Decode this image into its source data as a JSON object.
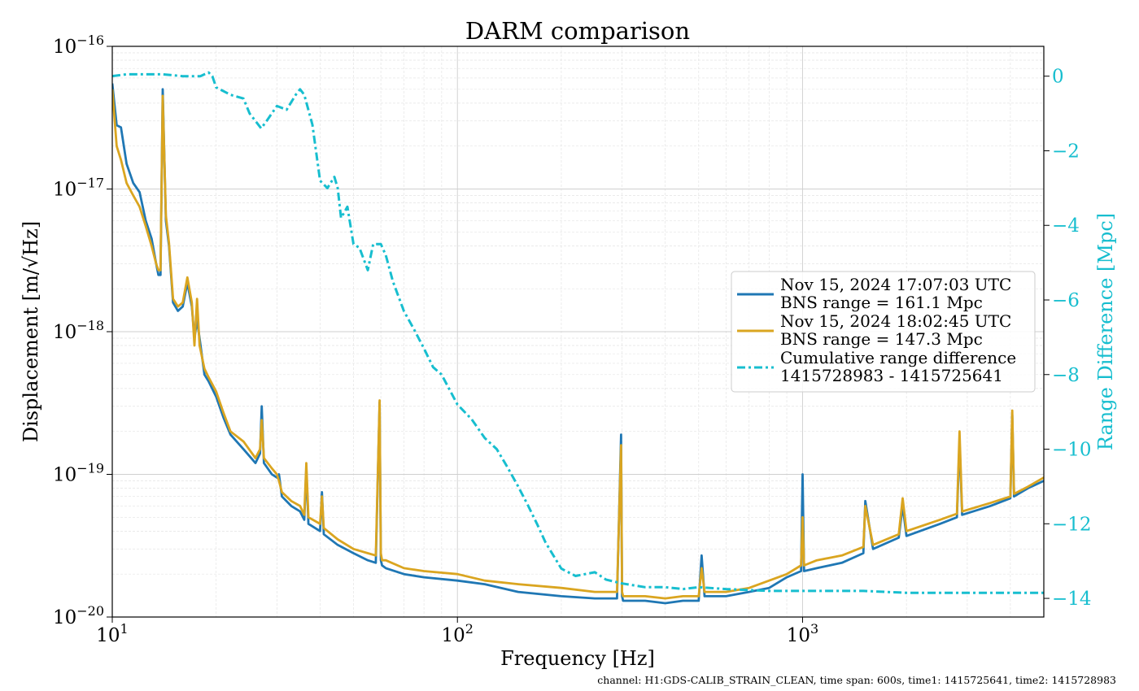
{
  "chart_data": {
    "type": "line",
    "title": "DARM comparison",
    "xlabel": "Frequency [Hz]",
    "ylabel": "Displacement [m/√Hz]",
    "y2label": "Range Difference [Mpc]",
    "xscale": "log",
    "yscale": "log",
    "xlim": [
      10,
      5000
    ],
    "ylim": [
      1e-20,
      1e-16
    ],
    "y2lim": [
      -14.5,
      0.8
    ],
    "grid": true,
    "legend_position": "center-right",
    "x_ticks": [
      {
        "value": 10,
        "base": "10",
        "exp": "1"
      },
      {
        "value": 100,
        "base": "10",
        "exp": "2"
      },
      {
        "value": 1000,
        "base": "10",
        "exp": "3"
      }
    ],
    "y_ticks": [
      {
        "value": 1e-16,
        "base": "10",
        "exp": "−16"
      },
      {
        "value": 1e-17,
        "base": "10",
        "exp": "−17"
      },
      {
        "value": 1e-18,
        "base": "10",
        "exp": "−18"
      },
      {
        "value": 1e-19,
        "base": "10",
        "exp": "−19"
      },
      {
        "value": 1e-20,
        "base": "10",
        "exp": "−20"
      }
    ],
    "y2_ticks": [
      {
        "value": 0,
        "label": "0"
      },
      {
        "value": -2,
        "label": "−2"
      },
      {
        "value": -4,
        "label": "−4"
      },
      {
        "value": -6,
        "label": "−6"
      },
      {
        "value": -8,
        "label": "−8"
      },
      {
        "value": -10,
        "label": "−10"
      },
      {
        "value": -12,
        "label": "−12"
      },
      {
        "value": -14,
        "label": "−14"
      }
    ],
    "series": [
      {
        "name": "Nov 15, 2024 17:07:03 UTC\nBNS range = 161.1 Mpc",
        "legend_lines": [
          "Nov 15, 2024 17:07:03 UTC",
          "BNS range = 161.1 Mpc"
        ],
        "axis": "left",
        "color": "#1f77b4",
        "style": "solid",
        "x": [
          10,
          10.3,
          10.6,
          11,
          11.5,
          12,
          12.5,
          13,
          13.4,
          13.6,
          13.8,
          14,
          14.3,
          14.6,
          15,
          15.5,
          16,
          16.5,
          17,
          17.3,
          17.6,
          17.9,
          18.5,
          19,
          20,
          21,
          22,
          24,
          26,
          26.8,
          27.1,
          27.5,
          29,
          30,
          30.4,
          31,
          33,
          35,
          36,
          36.5,
          37,
          40,
          40.5,
          41,
          45,
          50,
          55,
          58,
          59.5,
          60,
          60.5,
          62,
          70,
          80,
          100,
          120,
          150,
          200,
          250,
          290,
          298,
          300,
          302,
          310,
          350,
          400,
          450,
          500,
          510,
          520,
          600,
          700,
          800,
          900,
          990,
          1000,
          1010,
          1100,
          1300,
          1500,
          1520,
          1600,
          1900,
          1950,
          2000,
          2500,
          2800,
          2850,
          2900,
          3500,
          4000,
          4050,
          4100,
          4500,
          5000
        ],
        "y": [
          5.5e-17,
          2.8e-17,
          2.7e-17,
          1.5e-17,
          1.1e-17,
          9.5e-18,
          6e-18,
          4.5e-18,
          3e-18,
          2.5e-18,
          2.5e-18,
          5e-17,
          6e-18,
          4e-18,
          1.6e-18,
          1.4e-18,
          1.5e-18,
          2.2e-18,
          1.5e-18,
          9e-19,
          1.2e-18,
          9e-19,
          5e-19,
          4.5e-19,
          3.5e-19,
          2.5e-19,
          1.9e-19,
          1.5e-19,
          1.2e-19,
          1.4e-19,
          3e-19,
          1.2e-19,
          1e-19,
          9.5e-20,
          1e-19,
          7e-20,
          6e-20,
          5.5e-20,
          4.8e-20,
          1.1e-19,
          4.5e-20,
          4e-20,
          7.5e-20,
          3.8e-20,
          3.2e-20,
          2.8e-20,
          2.5e-20,
          2.4e-20,
          3.2e-19,
          2.5e-20,
          2.3e-20,
          2.2e-20,
          2e-20,
          1.9e-20,
          1.8e-20,
          1.7e-20,
          1.5e-20,
          1.4e-20,
          1.35e-20,
          1.35e-20,
          1.9e-19,
          1.4e-20,
          1.3e-20,
          1.3e-20,
          1.3e-20,
          1.25e-20,
          1.3e-20,
          1.3e-20,
          2.7e-20,
          1.4e-20,
          1.4e-20,
          1.5e-20,
          1.6e-20,
          1.9e-20,
          2.1e-20,
          1e-19,
          2.1e-20,
          2.2e-20,
          2.4e-20,
          2.8e-20,
          6.5e-20,
          3e-20,
          3.6e-20,
          6e-20,
          3.7e-20,
          4.5e-20,
          5e-20,
          1.7e-19,
          5.2e-20,
          6e-20,
          6.8e-20,
          2.6e-19,
          7e-20,
          8e-20,
          9e-20
        ]
      },
      {
        "name": "Nov 15, 2024 18:02:45 UTC\nBNS range = 147.3 Mpc",
        "legend_lines": [
          "Nov 15, 2024 18:02:45 UTC",
          "BNS range = 147.3 Mpc"
        ],
        "axis": "left",
        "color": "#daa520",
        "style": "solid",
        "x": [
          10,
          10.3,
          10.6,
          11,
          11.5,
          12,
          12.5,
          13,
          13.4,
          13.6,
          13.8,
          14,
          14.3,
          14.6,
          15,
          15.5,
          16,
          16.5,
          17,
          17.3,
          17.6,
          17.9,
          18.5,
          19,
          20,
          21,
          22,
          24,
          26,
          26.8,
          27.1,
          27.5,
          29,
          30,
          30.4,
          31,
          33,
          35,
          36,
          36.5,
          37,
          40,
          40.5,
          41,
          45,
          50,
          55,
          58,
          59.5,
          60,
          60.5,
          62,
          70,
          80,
          100,
          120,
          150,
          200,
          250,
          290,
          298,
          300,
          302,
          310,
          350,
          400,
          450,
          500,
          510,
          520,
          600,
          700,
          800,
          900,
          990,
          1000,
          1010,
          1100,
          1300,
          1500,
          1520,
          1600,
          1900,
          1950,
          2000,
          2500,
          2800,
          2850,
          2900,
          3500,
          4000,
          4050,
          4100,
          4500,
          5000
        ],
        "y": [
          5e-17,
          2e-17,
          1.6e-17,
          1.1e-17,
          9e-18,
          7.5e-18,
          5.5e-18,
          4e-18,
          3e-18,
          2.7e-18,
          2.7e-18,
          4.5e-17,
          6.5e-18,
          4.2e-18,
          1.7e-18,
          1.5e-18,
          1.6e-18,
          2.4e-18,
          1.6e-18,
          8e-19,
          1.7e-18,
          8e-19,
          5.5e-19,
          4.8e-19,
          3.8e-19,
          2.7e-19,
          2e-19,
          1.7e-19,
          1.3e-19,
          1.5e-19,
          2.4e-19,
          1.3e-19,
          1.1e-19,
          1e-19,
          9e-20,
          7.5e-20,
          6.5e-20,
          6e-20,
          5.2e-20,
          1.2e-19,
          5e-20,
          4.5e-20,
          7e-20,
          4.2e-20,
          3.5e-20,
          3e-20,
          2.8e-20,
          2.7e-20,
          3.3e-19,
          2.8e-20,
          2.5e-20,
          2.5e-20,
          2.2e-20,
          2.1e-20,
          2e-20,
          1.8e-20,
          1.7e-20,
          1.6e-20,
          1.5e-20,
          1.5e-20,
          1.6e-19,
          1.5e-20,
          1.4e-20,
          1.4e-20,
          1.4e-20,
          1.35e-20,
          1.4e-20,
          1.4e-20,
          2.2e-20,
          1.5e-20,
          1.5e-20,
          1.6e-20,
          1.8e-20,
          2e-20,
          2.3e-20,
          5e-20,
          2.3e-20,
          2.5e-20,
          2.7e-20,
          3.1e-20,
          6e-20,
          3.2e-20,
          3.8e-20,
          6.8e-20,
          4e-20,
          4.8e-20,
          5.3e-20,
          2e-19,
          5.5e-20,
          6.3e-20,
          7e-20,
          2.8e-19,
          7.3e-20,
          8.2e-20,
          9.5e-20
        ]
      },
      {
        "name": "Cumulative range difference\n1415728983 - 1415725641",
        "legend_lines": [
          "Cumulative range difference",
          "1415728983 - 1415725641"
        ],
        "axis": "right",
        "color": "#17becf",
        "style": "dashdot",
        "x": [
          10,
          11,
          12,
          14,
          16,
          18,
          19,
          19.5,
          20,
          22,
          24,
          25,
          26,
          27,
          28,
          30,
          32,
          34,
          35,
          36,
          38,
          40,
          42,
          44,
          45,
          46,
          48,
          50,
          52,
          55,
          57,
          60,
          62,
          65,
          70,
          75,
          80,
          85,
          90,
          100,
          110,
          120,
          130,
          140,
          150,
          160,
          170,
          180,
          200,
          220,
          250,
          270,
          300,
          350,
          400,
          450,
          500,
          600,
          800,
          1000,
          1500,
          2000,
          3000,
          5000
        ],
        "y": [
          0,
          0.05,
          0.05,
          0.05,
          0,
          0,
          0.1,
          0,
          -0.3,
          -0.5,
          -0.6,
          -1.0,
          -1.2,
          -1.4,
          -1.2,
          -0.8,
          -0.9,
          -0.5,
          -0.35,
          -0.5,
          -1.3,
          -2.8,
          -3.0,
          -2.7,
          -3.0,
          -3.8,
          -3.5,
          -4.5,
          -4.6,
          -5.2,
          -4.5,
          -4.5,
          -4.8,
          -5.5,
          -6.3,
          -6.8,
          -7.3,
          -7.8,
          -8.0,
          -8.8,
          -9.2,
          -9.7,
          -10.0,
          -10.5,
          -11.0,
          -11.5,
          -12.0,
          -12.5,
          -13.2,
          -13.4,
          -13.3,
          -13.5,
          -13.6,
          -13.7,
          -13.7,
          -13.75,
          -13.7,
          -13.75,
          -13.8,
          -13.8,
          -13.8,
          -13.85,
          -13.85,
          -13.85
        ]
      }
    ],
    "footnote": "channel: H1:GDS-CALIB_STRAIN_CLEAN, time span: 600s, time1: 1415725641, time2: 1415728983"
  }
}
